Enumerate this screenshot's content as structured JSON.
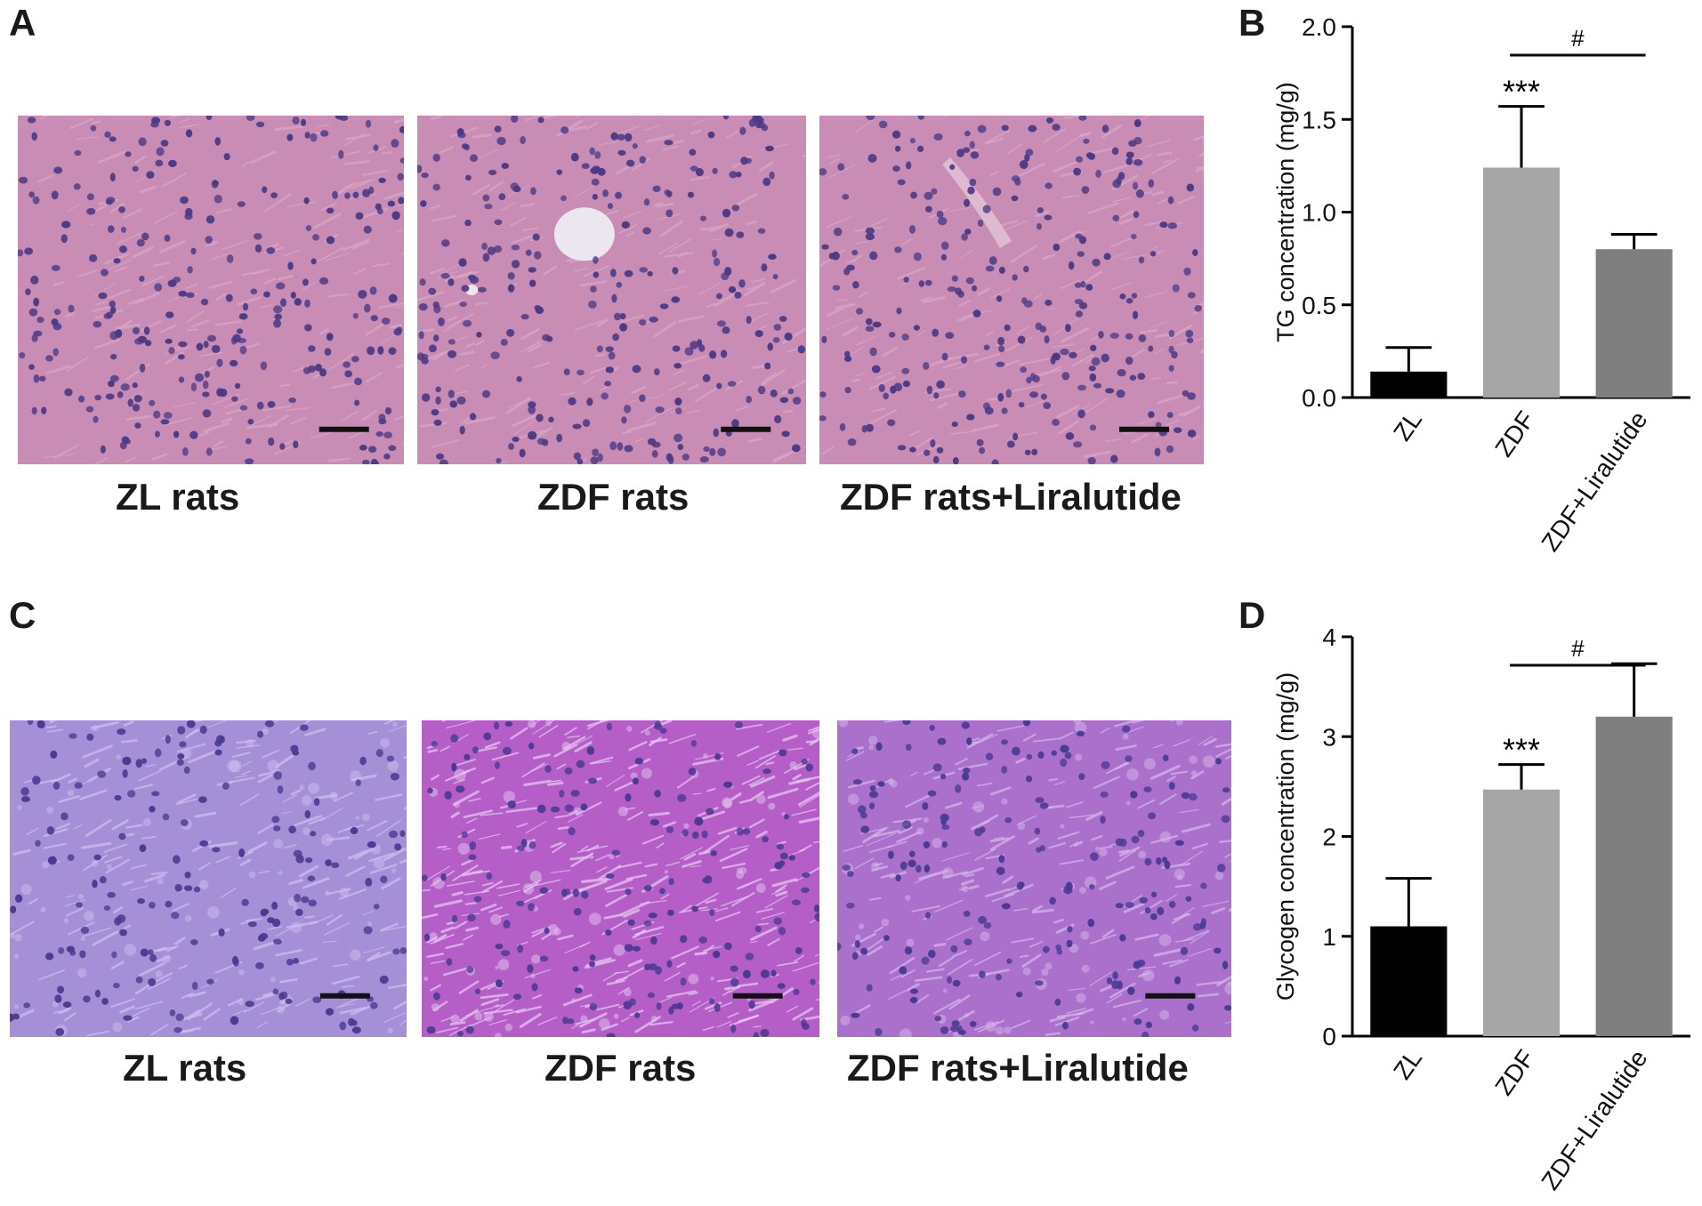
{
  "panels": {
    "a": {
      "letter": "A",
      "captions": [
        "ZL rats",
        "ZDF rats",
        "ZDF rats+Liralutide"
      ]
    },
    "b": {
      "letter": "B"
    },
    "c": {
      "letter": "C",
      "captions": [
        "ZL rats",
        "ZDF rats",
        "ZDF rats+Liralutide"
      ]
    },
    "d": {
      "letter": "D"
    }
  },
  "histology": {
    "he_colors": {
      "base": "#c98cb4",
      "light": "#d9a6c6",
      "nuclei": "#4b3a85",
      "vessel": "#ece6ee"
    },
    "pas_colors": {
      "zl": {
        "base": "#a58fd6",
        "light": "#cdbdf0",
        "nuclei": "#4a3a92"
      },
      "zdf": {
        "base": "#b55ec8",
        "light": "#e5c6ef",
        "nuclei": "#4a3a92"
      },
      "lira": {
        "base": "#aa70cc",
        "light": "#d5b6ea",
        "nuclei": "#4a3a92"
      }
    },
    "scale_bar_color": "#111111"
  },
  "chart_data": [
    {
      "type": "bar",
      "panel": "B",
      "categories": [
        "ZL",
        "ZDF",
        "ZDF+Liralutide"
      ],
      "values": [
        0.14,
        1.24,
        0.8
      ],
      "errors": [
        0.13,
        0.33,
        0.08
      ],
      "colors": [
        "#000000",
        "#a6a6a6",
        "#7f7f7f"
      ],
      "ylabel": "TG concentration (mg/g)",
      "ylim": [
        0,
        2.0
      ],
      "yticks": [
        "0.0",
        "0.5",
        "1.0",
        "1.5",
        "2.0"
      ],
      "significance": [
        {
          "category": "ZDF",
          "label": "***"
        },
        {
          "between": [
            "ZDF",
            "ZDF+Liralutide"
          ],
          "label": "#"
        }
      ]
    },
    {
      "type": "bar",
      "panel": "D",
      "categories": [
        "ZL",
        "ZDF",
        "ZDF+Liralutide"
      ],
      "values": [
        1.1,
        2.47,
        3.2
      ],
      "errors": [
        0.48,
        0.25,
        0.53
      ],
      "colors": [
        "#000000",
        "#a6a6a6",
        "#7f7f7f"
      ],
      "ylabel": "Glycogen concentration (mg/g)",
      "ylim": [
        0,
        4
      ],
      "yticks": [
        "0",
        "1",
        "2",
        "3",
        "4"
      ],
      "significance": [
        {
          "category": "ZDF",
          "label": "***"
        },
        {
          "between": [
            "ZDF",
            "ZDF+Liralutide"
          ],
          "label": "#"
        }
      ]
    }
  ]
}
